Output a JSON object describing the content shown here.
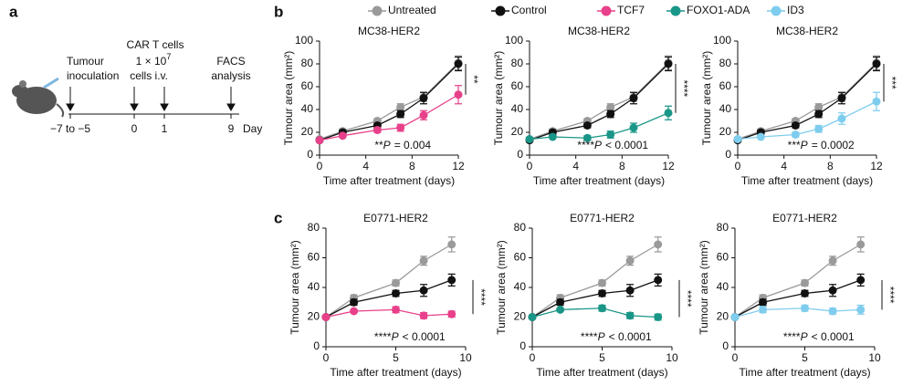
{
  "panel_letters": {
    "a": "a",
    "b": "b",
    "c": "c"
  },
  "timeline": {
    "inoculation_1": "Tumour",
    "inoculation_2": "inoculation",
    "car_t": "CAR T cells",
    "dose_base": "1 × 10",
    "dose_exp": "7",
    "route": "cells i.v.",
    "facs_1": "FACS",
    "facs_2": "analysis",
    "ticks": [
      "−7 to −5",
      "0",
      "1",
      "9"
    ],
    "unit": "Day"
  },
  "legend": [
    {
      "name": "Untreated",
      "color": "#9a9a9a"
    },
    {
      "name": "Control",
      "color": "#111111"
    },
    {
      "name": "TCF7",
      "color": "#e8408a"
    },
    {
      "name": "FOXO1-ADA",
      "color": "#1a9688"
    },
    {
      "name": "ID3",
      "color": "#7fcdee"
    }
  ],
  "chart_data": [
    {
      "type": "line",
      "title": "MC38-HER2",
      "xlabel": "Time after treatment (days)",
      "ylabel": "Tumour area (mm²)",
      "x": [
        0,
        2,
        5,
        7,
        9,
        12
      ],
      "xlim": [
        0,
        12
      ],
      "xticks": [
        0,
        4,
        8,
        12
      ],
      "ylim": [
        0,
        100
      ],
      "yticks": [
        0,
        20,
        40,
        60,
        80,
        100
      ],
      "series": [
        {
          "name": "Untreated",
          "color": "#9a9a9a",
          "values": [
            14,
            21,
            30,
            42,
            51,
            81
          ],
          "errors": [
            1,
            2,
            2,
            3,
            4,
            6
          ]
        },
        {
          "name": "Control",
          "color": "#111111",
          "values": [
            13,
            20,
            26,
            36,
            50,
            80
          ],
          "errors": [
            1,
            2,
            2,
            3,
            5,
            6
          ]
        },
        {
          "name": "TCF7",
          "color": "#e8408a",
          "values": [
            13,
            17,
            22,
            24,
            35,
            53
          ],
          "errors": [
            1,
            1,
            2,
            3,
            4,
            8
          ]
        }
      ],
      "bracket_label": "**",
      "p_stars": "**",
      "p_label": "P",
      "p_value": "= 0.004"
    },
    {
      "type": "line",
      "title": "MC38-HER2",
      "xlabel": "Time after treatment (days)",
      "ylabel": "Tumour area (mm²)",
      "x": [
        0,
        2,
        5,
        7,
        9,
        12
      ],
      "xlim": [
        0,
        12
      ],
      "xticks": [
        0,
        4,
        8,
        12
      ],
      "ylim": [
        0,
        100
      ],
      "yticks": [
        0,
        20,
        40,
        60,
        80,
        100
      ],
      "series": [
        {
          "name": "Untreated",
          "color": "#9a9a9a",
          "values": [
            14,
            21,
            30,
            42,
            51,
            81
          ],
          "errors": [
            1,
            2,
            2,
            3,
            4,
            6
          ]
        },
        {
          "name": "Control",
          "color": "#111111",
          "values": [
            13,
            20,
            26,
            36,
            50,
            80
          ],
          "errors": [
            1,
            2,
            2,
            3,
            5,
            6
          ]
        },
        {
          "name": "FOXO1-ADA",
          "color": "#1a9688",
          "values": [
            14,
            16,
            15,
            18,
            24,
            37
          ],
          "errors": [
            1,
            1,
            2,
            3,
            4,
            6
          ]
        }
      ],
      "bracket_label": "****",
      "p_stars": "****",
      "p_label": "P",
      "p_value": "< 0.0001"
    },
    {
      "type": "line",
      "title": "MC38-HER2",
      "xlabel": "Time after treatment (days)",
      "ylabel": "Tumour area (mm²)",
      "x": [
        0,
        2,
        5,
        7,
        9,
        12
      ],
      "xlim": [
        0,
        12
      ],
      "xticks": [
        0,
        4,
        8,
        12
      ],
      "ylim": [
        0,
        100
      ],
      "yticks": [
        0,
        20,
        40,
        60,
        80,
        100
      ],
      "series": [
        {
          "name": "Untreated",
          "color": "#9a9a9a",
          "values": [
            14,
            21,
            30,
            42,
            51,
            81
          ],
          "errors": [
            1,
            2,
            2,
            3,
            4,
            6
          ]
        },
        {
          "name": "Control",
          "color": "#111111",
          "values": [
            13,
            20,
            26,
            36,
            50,
            80
          ],
          "errors": [
            1,
            2,
            2,
            3,
            5,
            6
          ]
        },
        {
          "name": "ID3",
          "color": "#7fcdee",
          "values": [
            14,
            16,
            18,
            23,
            32,
            47
          ],
          "errors": [
            1,
            1,
            2,
            3,
            5,
            8
          ]
        }
      ],
      "bracket_label": "***",
      "p_stars": "***",
      "p_label": "P",
      "p_value": "= 0.0002"
    },
    {
      "type": "line",
      "title": "E0771-HER2",
      "xlabel": "Time after treatment (days)",
      "ylabel": "Tumour area (mm²)",
      "x": [
        0,
        2,
        5,
        7,
        9
      ],
      "xlim": [
        0,
        10
      ],
      "xticks": [
        0,
        5,
        10
      ],
      "ylim": [
        0,
        80
      ],
      "yticks": [
        0,
        20,
        40,
        60,
        80
      ],
      "series": [
        {
          "name": "Untreated",
          "color": "#9a9a9a",
          "values": [
            20,
            33,
            43,
            58,
            69
          ],
          "errors": [
            1,
            2,
            2,
            3,
            5
          ]
        },
        {
          "name": "Control",
          "color": "#111111",
          "values": [
            20,
            30,
            36,
            38,
            45
          ],
          "errors": [
            1,
            2,
            2,
            4,
            4
          ]
        },
        {
          "name": "TCF7",
          "color": "#e8408a",
          "values": [
            20,
            24,
            25,
            21,
            22
          ],
          "errors": [
            1,
            1,
            2,
            2,
            2
          ]
        }
      ],
      "bracket_label": "****",
      "p_stars": "****",
      "p_label": "P",
      "p_value": "< 0.0001"
    },
    {
      "type": "line",
      "title": "E0771-HER2",
      "xlabel": "Time after treatment (days)",
      "ylabel": "Tumour area (mm²)",
      "x": [
        0,
        2,
        5,
        7,
        9
      ],
      "xlim": [
        0,
        10
      ],
      "xticks": [
        0,
        5,
        10
      ],
      "ylim": [
        0,
        80
      ],
      "yticks": [
        0,
        20,
        40,
        60,
        80
      ],
      "series": [
        {
          "name": "Untreated",
          "color": "#9a9a9a",
          "values": [
            20,
            33,
            43,
            58,
            69
          ],
          "errors": [
            1,
            2,
            2,
            3,
            5
          ]
        },
        {
          "name": "Control",
          "color": "#111111",
          "values": [
            20,
            30,
            36,
            38,
            45
          ],
          "errors": [
            1,
            2,
            2,
            4,
            4
          ]
        },
        {
          "name": "FOXO1-ADA",
          "color": "#1a9688",
          "values": [
            20,
            25,
            26,
            21,
            20
          ],
          "errors": [
            1,
            1,
            2,
            2,
            2
          ]
        }
      ],
      "bracket_label": "****",
      "p_stars": "****",
      "p_label": "P",
      "p_value": "< 0.0001"
    },
    {
      "type": "line",
      "title": "E0771-HER2",
      "xlabel": "Time after treatment (days)",
      "ylabel": "Tumour area (mm²)",
      "x": [
        0,
        2,
        5,
        7,
        9
      ],
      "xlim": [
        0,
        10
      ],
      "xticks": [
        0,
        5,
        10
      ],
      "ylim": [
        0,
        80
      ],
      "yticks": [
        0,
        20,
        40,
        60,
        80
      ],
      "series": [
        {
          "name": "Untreated",
          "color": "#9a9a9a",
          "values": [
            20,
            33,
            43,
            58,
            69
          ],
          "errors": [
            1,
            2,
            2,
            3,
            5
          ]
        },
        {
          "name": "Control",
          "color": "#111111",
          "values": [
            20,
            30,
            36,
            38,
            45
          ],
          "errors": [
            1,
            2,
            2,
            4,
            4
          ]
        },
        {
          "name": "ID3",
          "color": "#7fcdee",
          "values": [
            20,
            25,
            26,
            24,
            25
          ],
          "errors": [
            1,
            2,
            2,
            2,
            3
          ]
        }
      ],
      "bracket_label": "****",
      "p_stars": "****",
      "p_label": "P",
      "p_value": "< 0.0001"
    }
  ]
}
